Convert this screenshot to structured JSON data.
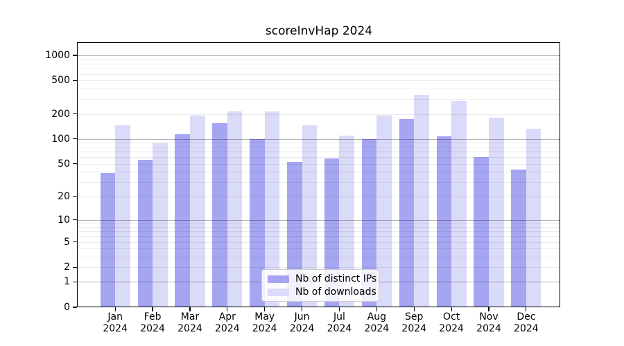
{
  "title": "scoreInvHap 2024",
  "chart_data": {
    "type": "bar",
    "title": "scoreInvHap 2024",
    "categories": [
      "Jan",
      "Feb",
      "Mar",
      "Apr",
      "May",
      "Jun",
      "Jul",
      "Aug",
      "Sep",
      "Oct",
      "Nov",
      "Dec"
    ],
    "category_year": "2024",
    "series": [
      {
        "name": "Nb of distinct IPs",
        "color": "#a5a5f2",
        "values": [
          39,
          56,
          115,
          155,
          100,
          53,
          58,
          100,
          174,
          108,
          61,
          43
        ]
      },
      {
        "name": "Nb of downloads",
        "color": "#dadaf9",
        "values": [
          145,
          89,
          190,
          215,
          215,
          145,
          110,
          190,
          340,
          285,
          180,
          133
        ]
      }
    ],
    "yticks": [
      0,
      1,
      2,
      5,
      10,
      20,
      50,
      100,
      200,
      500,
      1000
    ],
    "ylim": [
      0,
      1430
    ],
    "scale": "log1p",
    "grid": true,
    "grid_major_color": "#adadad",
    "grid_minor_color": "#ebebeb",
    "legend_position": "lower center",
    "xlabel": "",
    "ylabel": ""
  }
}
